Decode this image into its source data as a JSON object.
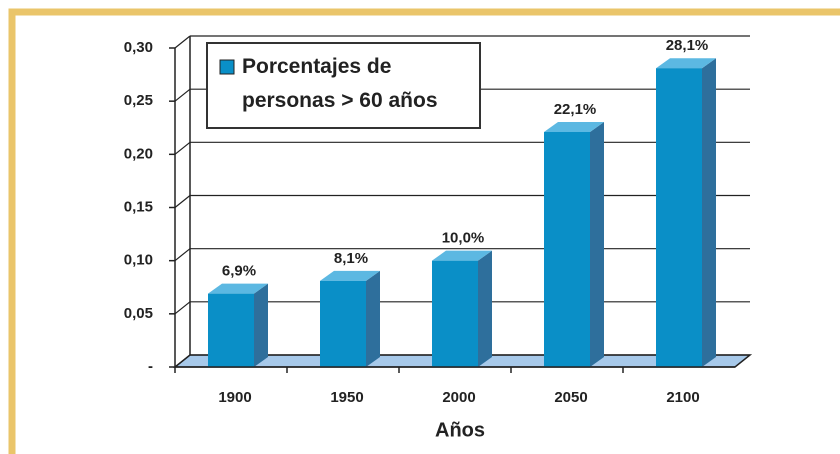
{
  "chart_data": {
    "type": "bar3d",
    "x_label": "Años",
    "categories": [
      "1900",
      "1950",
      "2000",
      "2050",
      "2100"
    ],
    "series": [
      {
        "name": "Porcentajes de personas > 60 años",
        "color": "#0a8fc7",
        "values": [
          0.069,
          0.081,
          0.1,
          0.221,
          0.281
        ],
        "value_labels": [
          "6,9%",
          "8,1%",
          "10,0%",
          "22,1%",
          "28,1%"
        ]
      }
    ],
    "ylim": [
      0,
      0.3
    ],
    "yticks": [
      {
        "value": 0,
        "label": "-"
      },
      {
        "value": 0.05,
        "label": "0,05"
      },
      {
        "value": 0.1,
        "label": "0,10"
      },
      {
        "value": 0.15,
        "label": "0,15"
      },
      {
        "value": 0.2,
        "label": "0,20"
      },
      {
        "value": 0.25,
        "label": "0,25"
      },
      {
        "value": 0.3,
        "label": "0,30"
      }
    ],
    "grid": true,
    "legend": "top-left"
  }
}
